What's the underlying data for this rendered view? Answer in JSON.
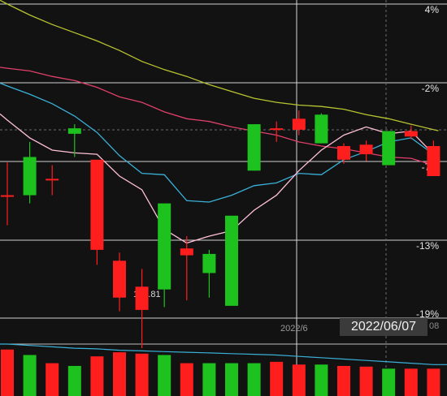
{
  "colors": {
    "up": "#ff1e1e",
    "down": "#1ec21e",
    "ma5": "#ffc0d8",
    "ma10": "#3ab0d8",
    "ma20": "#e0406a",
    "ma60": "#b8c430",
    "grid": "#d0d0d0",
    "background": "#121212"
  },
  "axis": {
    "right_labels": [
      "4%",
      "-2%",
      "-7%",
      "-13%",
      "-19%"
    ]
  },
  "annotations": {
    "low_price": "132.81",
    "month_label": "2022/6",
    "crosshair_date": "2022/06/07",
    "crosshair_tail": "08"
  },
  "chart_data": {
    "type": "candlestick",
    "y_unit": "percent change",
    "ylim": [
      -19,
      4
    ],
    "grid": true,
    "candles": [
      {
        "open": -10.0,
        "close": -10.0,
        "high": -7.6,
        "low": -12.2,
        "color": "red"
      },
      {
        "open": -7.2,
        "close": -10.0,
        "high": -6.1,
        "low": -10.6,
        "color": "green"
      },
      {
        "open": -8.8,
        "close": -8.8,
        "high": -7.8,
        "low": -10.0,
        "color": "red"
      },
      {
        "open": -5.1,
        "close": -5.5,
        "high": -4.8,
        "low": -7.2,
        "color": "green"
      },
      {
        "open": -7.4,
        "close": -14.0,
        "high": -7.4,
        "low": -15.1,
        "color": "red"
      },
      {
        "open": -14.8,
        "close": -17.5,
        "high": -14.2,
        "low": -18.5,
        "color": "red"
      },
      {
        "open": -16.7,
        "close": -18.4,
        "high": -15.4,
        "low": -21.2,
        "color": "red"
      },
      {
        "open": -10.6,
        "close": -16.9,
        "high": -10.6,
        "low": -18.2,
        "color": "green"
      },
      {
        "open": -13.9,
        "close": -14.4,
        "high": -13.0,
        "low": -17.7,
        "color": "red"
      },
      {
        "open": -15.7,
        "close": -14.3,
        "high": -14.0,
        "low": -17.5,
        "color": "green"
      },
      {
        "open": -11.5,
        "close": -18.1,
        "high": -11.5,
        "low": -18.1,
        "color": "green"
      },
      {
        "open": -4.8,
        "close": -8.2,
        "high": -4.8,
        "low": -8.2,
        "color": "green"
      },
      {
        "open": -5.1,
        "close": -5.1,
        "high": -4.6,
        "low": -6.1,
        "color": "red"
      },
      {
        "open": -4.4,
        "close": -5.2,
        "high": -3.8,
        "low": -5.6,
        "color": "red"
      },
      {
        "open": -4.1,
        "close": -6.2,
        "high": -4.0,
        "low": -6.2,
        "color": "green"
      },
      {
        "open": -7.4,
        "close": -6.4,
        "high": -6.2,
        "low": -7.7,
        "color": "red"
      },
      {
        "open": -7.0,
        "close": -6.3,
        "high": -6.0,
        "low": -7.5,
        "color": "red"
      },
      {
        "open": -7.8,
        "close": -5.3,
        "high": -5.3,
        "low": -7.8,
        "color": "green"
      },
      {
        "open": -5.3,
        "close": -5.7,
        "high": -4.9,
        "low": -5.9,
        "color": "red"
      },
      {
        "open": -6.4,
        "close": -8.6,
        "high": -6.0,
        "low": -8.6,
        "color": "red"
      }
    ],
    "moving_averages": [
      {
        "key": "ma60",
        "values": [
          4.0,
          3.2,
          2.5,
          1.9,
          1.3,
          0.6,
          -0.2,
          -0.8,
          -1.3,
          -1.9,
          -2.4,
          -2.9,
          -3.2,
          -3.4,
          -3.5,
          -3.7,
          -4.1,
          -4.4,
          -4.8,
          -5.2
        ]
      },
      {
        "key": "ma20",
        "values": [
          -0.7,
          -0.9,
          -1.3,
          -1.6,
          -2.1,
          -2.8,
          -3.2,
          -3.9,
          -4.4,
          -4.6,
          -5.0,
          -5.3,
          -5.6,
          -6.1,
          -6.4,
          -6.6,
          -6.9,
          -7.2,
          -7.3,
          -7.8
        ]
      },
      {
        "key": "ma10",
        "values": [
          -2.0,
          -2.6,
          -3.3,
          -4.2,
          -5.4,
          -7.1,
          -8.4,
          -8.5,
          -10.4,
          -10.5,
          -10.0,
          -9.3,
          -9.1,
          -8.4,
          -8.5,
          -7.4,
          -6.8,
          -6.1,
          -5.8,
          -7.0
        ]
      },
      {
        "key": "ma5",
        "values": [
          -4.5,
          -5.8,
          -6.7,
          -6.9,
          -7.0,
          -8.6,
          -9.6,
          -12.5,
          -13.5,
          -13.0,
          -12.6,
          -11.1,
          -10.0,
          -8.2,
          -6.7,
          -5.6,
          -5.0,
          -5.5,
          -5.3,
          -7.0
        ]
      }
    ],
    "volume": {
      "bars": [
        68,
        60,
        48,
        44,
        58,
        64,
        62,
        60,
        48,
        48,
        48,
        48,
        50,
        46,
        46,
        44,
        43,
        40,
        40,
        40
      ],
      "ma_values": [
        76,
        74,
        72,
        70,
        69,
        67,
        66,
        65,
        64,
        63,
        62,
        61,
        60,
        58,
        56,
        54,
        52,
        50,
        48,
        46
      ]
    }
  }
}
